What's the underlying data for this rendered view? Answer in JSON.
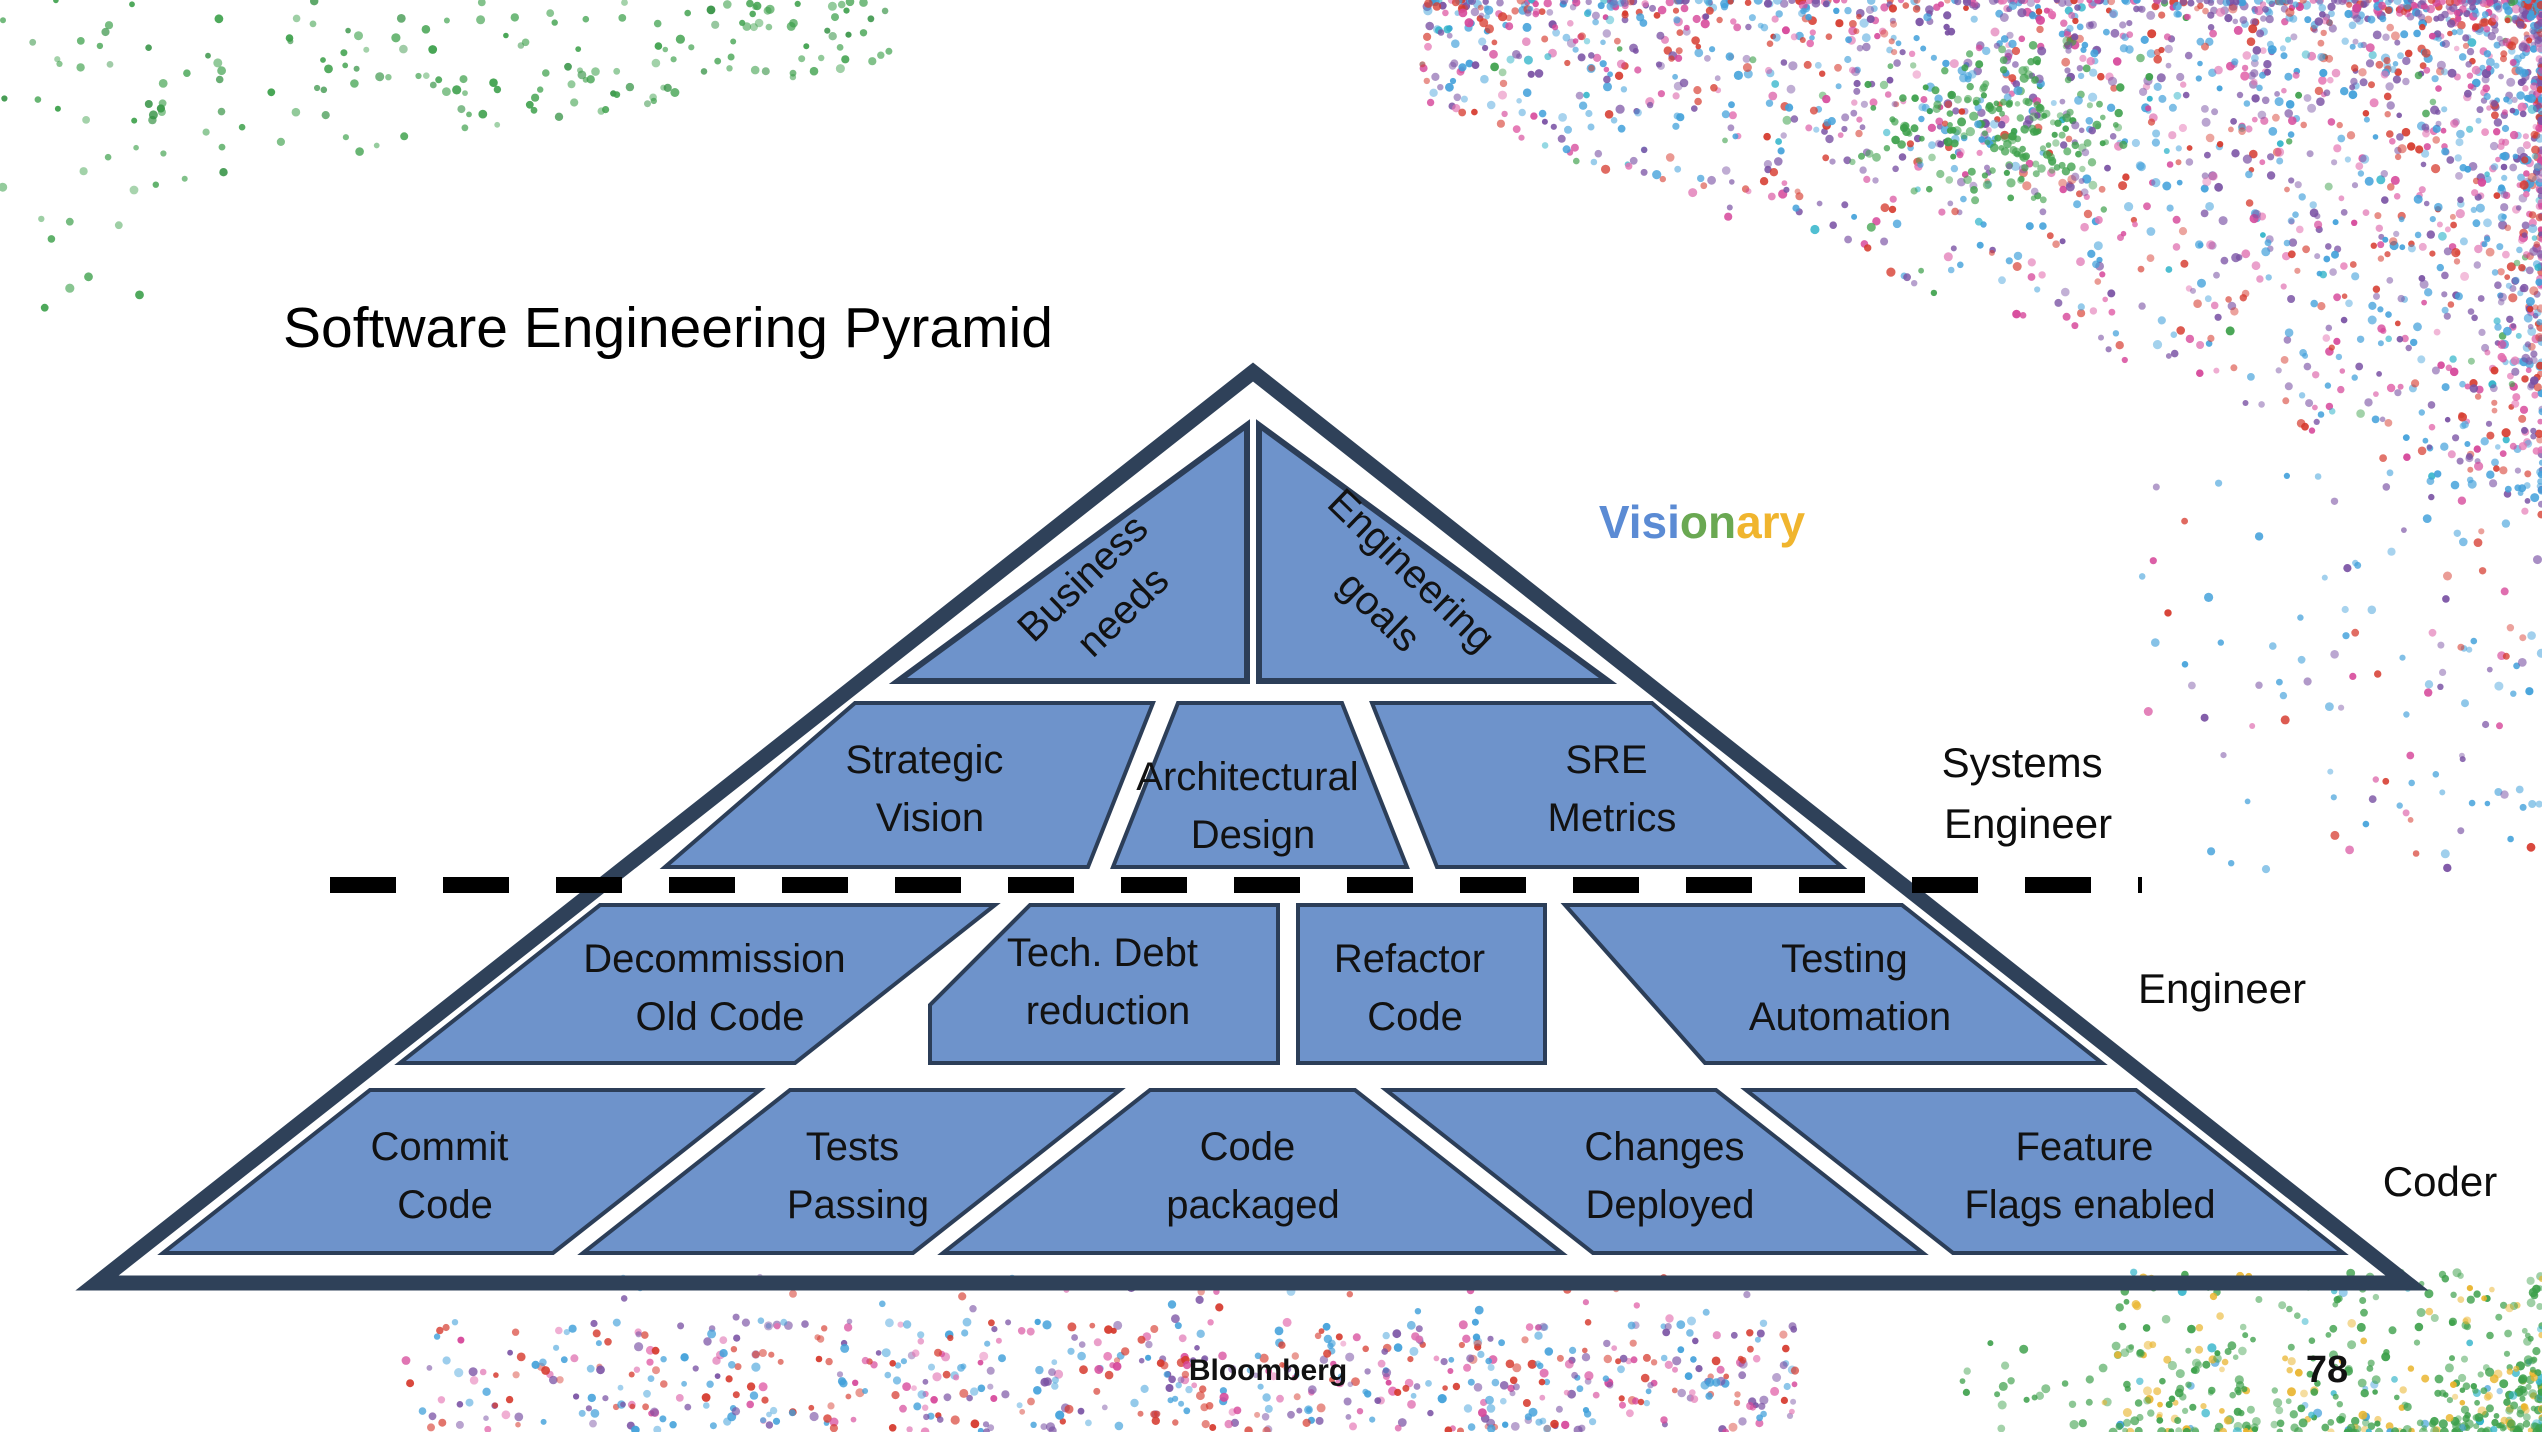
{
  "slide": {
    "title": "Software Engineering Pyramid",
    "footer_brand": "Bloomberg",
    "page_number": "78"
  },
  "pyramid": {
    "levels": [
      {
        "cells": [
          {
            "line1": "Business",
            "line2": "needs"
          },
          {
            "line1": "Engineering",
            "line2": "goals"
          }
        ]
      },
      {
        "cells": [
          {
            "line1": "Strategic",
            "line2": "Vision"
          },
          {
            "line1": "Architectural",
            "line2": "Design"
          },
          {
            "line1": "SRE",
            "line2": "Metrics"
          }
        ]
      },
      {
        "cells": [
          {
            "line1": "Decommission",
            "line2": "Old Code"
          },
          {
            "line1": "Tech. Debt",
            "line2": "reduction"
          },
          {
            "line1": "Refactor",
            "line2": "Code"
          },
          {
            "line1": "Testing",
            "line2": "Automation"
          }
        ]
      },
      {
        "cells": [
          {
            "line1": "Commit",
            "line2": "Code"
          },
          {
            "line1": "Tests",
            "line2": "Passing"
          },
          {
            "line1": "Code",
            "line2": "packaged"
          },
          {
            "line1": "Changes",
            "line2": "Deployed"
          },
          {
            "line1": "Feature",
            "line2": "Flags enabled"
          }
        ]
      }
    ]
  },
  "role_labels": {
    "visionary_segments": [
      {
        "text": "Visi",
        "color": "#5b8bd4"
      },
      {
        "text": "on",
        "color": "#6aa852"
      },
      {
        "text": "ary",
        "color": "#f0b52e"
      }
    ],
    "systems_engineer": {
      "line1": "Systems",
      "line2": "Engineer"
    },
    "engineer": "Engineer",
    "coder": "Coder"
  },
  "colors": {
    "cell_fill": "#6e93cb",
    "cell_border": "#2c3e58",
    "pyramid_outline": "#2f4159",
    "divider_dash": "#000000"
  },
  "background_confetti": {
    "palette": {
      "green": "#3da04b",
      "green_dark": "#2f8f3f",
      "blue": "#41a0da",
      "purple": "#7a52a4",
      "red": "#d63a2e",
      "magenta": "#d6479a",
      "pink": "#e471b1",
      "teal": "#2fb3c9",
      "gold": "#e9b42c"
    }
  }
}
